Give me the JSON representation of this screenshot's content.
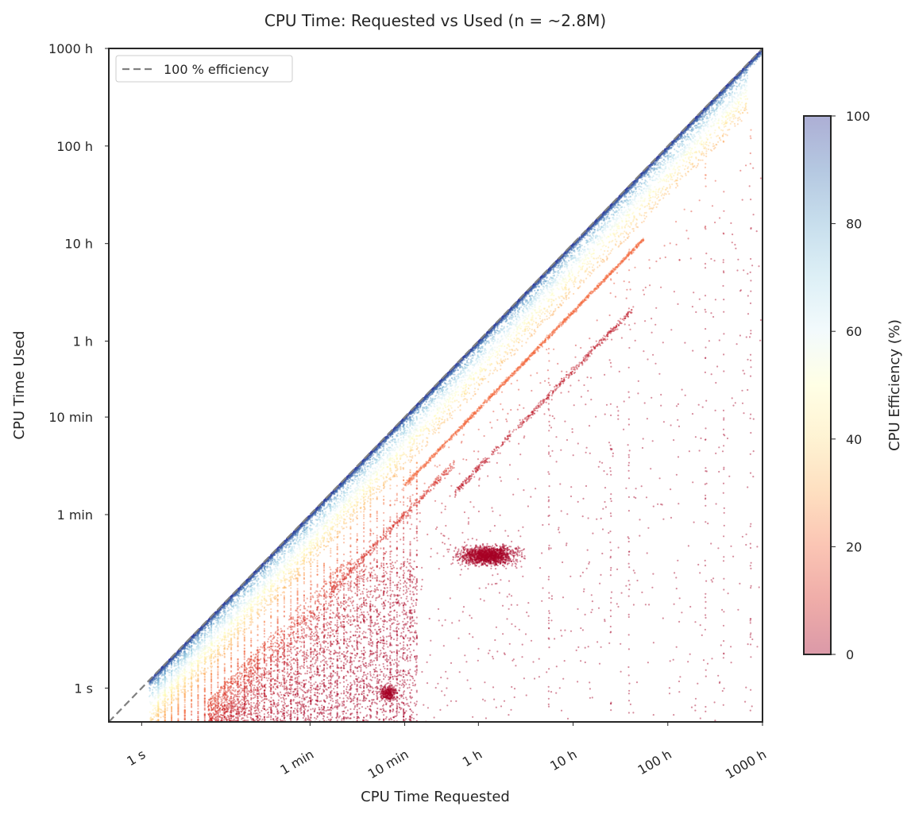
{
  "chart_data": {
    "type": "scatter",
    "title": "CPU Time: Requested vs Used (n = ~2.8M)",
    "xlabel": "CPU Time Requested",
    "ylabel": "CPU Time Used",
    "x_scale": "log",
    "y_scale": "log",
    "x_unit": "seconds",
    "y_unit": "seconds",
    "xlim": [
      0.45,
      3600000
    ],
    "ylim": [
      0.45,
      3600000
    ],
    "x_ticks": [
      {
        "value": 1,
        "label": "1 s"
      },
      {
        "value": 60,
        "label": "1 min"
      },
      {
        "value": 600,
        "label": "10 min"
      },
      {
        "value": 3600,
        "label": "1 h"
      },
      {
        "value": 36000,
        "label": "10 h"
      },
      {
        "value": 360000,
        "label": "100 h"
      },
      {
        "value": 3600000,
        "label": "1000 h"
      }
    ],
    "y_ticks": [
      {
        "value": 1,
        "label": "1 s"
      },
      {
        "value": 60,
        "label": "1 min"
      },
      {
        "value": 600,
        "label": "10 min"
      },
      {
        "value": 3600,
        "label": "1 h"
      },
      {
        "value": 36000,
        "label": "10 h"
      },
      {
        "value": 360000,
        "label": "100 h"
      },
      {
        "value": 3600000,
        "label": "1000 h"
      }
    ],
    "reference_line": {
      "label": "100 % efficiency",
      "style": "dashed",
      "color": "#808080"
    },
    "legend": {
      "position": "top-left",
      "entries": [
        "100 % efficiency"
      ]
    },
    "colorbar": {
      "label": "CPU Efficiency (%)",
      "range": [
        0,
        100
      ],
      "ticks": [
        "0",
        "20",
        "40",
        "60",
        "80",
        "100"
      ],
      "colormap": "RdYlBu",
      "colors": [
        "#a50026",
        "#d73027",
        "#f46d43",
        "#fdae61",
        "#fee090",
        "#ffffbf",
        "#e0f3f8",
        "#abd9e9",
        "#74add1",
        "#4575b4",
        "#313695"
      ]
    },
    "point_clusters": [
      {
        "x_range": [
          1,
          3600000
        ],
        "efficiency_range": [
          80,
          100
        ],
        "shape": "dense band along diagonal"
      },
      {
        "x_range": [
          1,
          1800000
        ],
        "efficiency_range": [
          30,
          80
        ],
        "shape": "dense band below diagonal"
      },
      {
        "x_range": [
          600,
          200000
        ],
        "efficiency": 20,
        "shape": "diagonal streak"
      },
      {
        "x_range": [
          2000,
          150000
        ],
        "efficiency": 5,
        "shape": "diagonal streak"
      },
      {
        "x_range": [
          3,
          600
        ],
        "y_range": [
          0.5,
          20
        ],
        "efficiency_range": [
          0,
          20
        ],
        "shape": "vertical stripes"
      },
      {
        "x_range": [
          1500,
          15000
        ],
        "y_range": [
          12,
          45
        ],
        "efficiency_range": [
          0,
          3
        ],
        "shape": "dense blob"
      },
      {
        "x_range": [
          200,
          700
        ],
        "y_range": [
          0.6,
          1.3
        ],
        "efficiency_range": [
          0,
          3
        ],
        "shape": "small blob"
      },
      {
        "x_range": [
          60,
          3600000
        ],
        "y_range": [
          0.5,
          30000
        ],
        "efficiency_range": [
          0,
          20
        ],
        "shape": "sparse scatter"
      }
    ]
  }
}
